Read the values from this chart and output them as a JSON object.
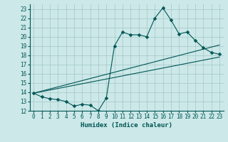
{
  "xlabel": "Humidex (Indice chaleur)",
  "bg_color": "#cce8e8",
  "grid_color": "#aacccc",
  "line_color": "#005555",
  "xlim": [
    -0.5,
    23.5
  ],
  "ylim": [
    12,
    23.5
  ],
  "xticks": [
    0,
    1,
    2,
    3,
    4,
    5,
    6,
    7,
    8,
    9,
    10,
    11,
    12,
    13,
    14,
    15,
    16,
    17,
    18,
    19,
    20,
    21,
    22,
    23
  ],
  "yticks": [
    12,
    13,
    14,
    15,
    16,
    17,
    18,
    19,
    20,
    21,
    22,
    23
  ],
  "line1_x": [
    0,
    1,
    2,
    3,
    4,
    5,
    6,
    7,
    8,
    9,
    10,
    11,
    12,
    13,
    14,
    15,
    16,
    17,
    18,
    19,
    20,
    21,
    22,
    23
  ],
  "line1_y": [
    13.9,
    13.5,
    13.3,
    13.2,
    13.0,
    12.5,
    12.7,
    12.6,
    12.0,
    13.4,
    19.0,
    20.5,
    20.2,
    20.2,
    20.0,
    22.0,
    23.1,
    21.8,
    20.3,
    20.5,
    19.6,
    18.8,
    18.3,
    18.1
  ],
  "line2_x": [
    0,
    23
  ],
  "line2_y": [
    13.9,
    17.8
  ],
  "line3_x": [
    0,
    23
  ],
  "line3_y": [
    13.9,
    19.1
  ],
  "marker_size": 2.5,
  "font_size": 6.5,
  "tick_font_size": 5.5
}
